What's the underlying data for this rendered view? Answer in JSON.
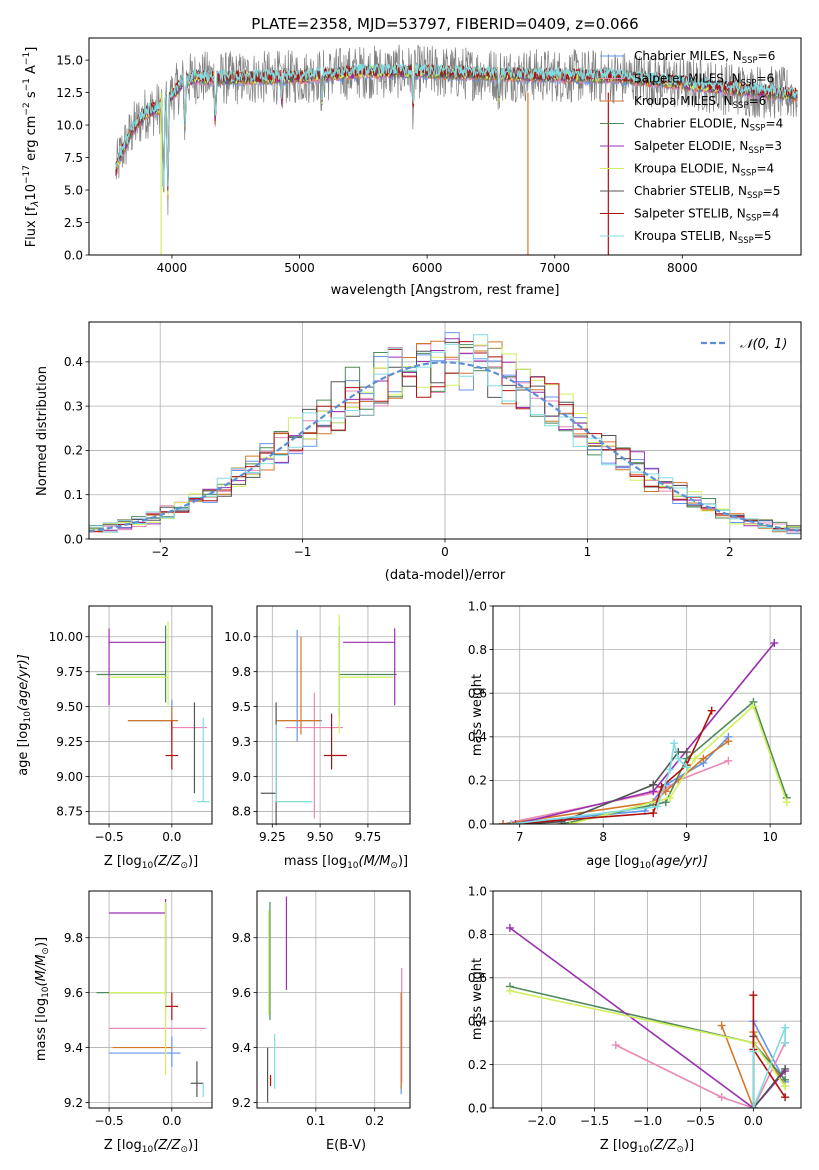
{
  "colors": {
    "chabrier_miles": "#6495ed",
    "salpeter_miles": "#e889b8",
    "kroupa_miles": "#d2772a",
    "chabrier_elodie": "#4e8a5a",
    "salpeter_elodie": "#9b2fb0",
    "kroupa_elodie": "#d0f060",
    "chabrier_stelib": "#555555",
    "salpeter_stelib": "#b01010",
    "kroupa_stelib": "#80dde0",
    "gauss": "#5b8fd8",
    "observed": "#7f7f7f"
  },
  "chart_data": [
    {
      "id": "spectrum",
      "type": "line",
      "title": "PLATE=2358, MJD=53797, FIBERID=0409, z=0.066",
      "xlabel": "wavelength [Angstrom, rest frame]",
      "ylabel_parts": [
        "Flux [f",
        "λ",
        "10",
        "−17",
        " erg cm",
        "−2",
        " s",
        "−1",
        " A",
        "−1",
        "]"
      ],
      "xlim": [
        3350,
        8930
      ],
      "ylim": [
        0,
        16.7
      ],
      "xticks": [
        4000,
        5000,
        6000,
        7000,
        8000
      ],
      "yticks": [
        0.0,
        2.5,
        5.0,
        7.5,
        10.0,
        12.5,
        15.0
      ],
      "continuum": {
        "x": [
          3560,
          3600,
          3700,
          3800,
          3900,
          4000,
          4100,
          4200,
          4300,
          4500,
          5000,
          5500,
          6000,
          6500,
          7000,
          7500,
          8000,
          8500,
          8900
        ],
        "y": [
          6.5,
          7.8,
          9.8,
          11.0,
          11.3,
          12.3,
          13.4,
          13.7,
          13.6,
          13.6,
          13.7,
          14.1,
          14.1,
          13.9,
          13.8,
          13.7,
          13.2,
          12.7,
          12.3
        ]
      },
      "legend": [
        {
          "label": "Chabrier MILES, N",
          "sub": "SSP",
          "tail": "=6"
        },
        {
          "label": "Salpeter MILES, N",
          "sub": "SSP",
          "tail": "=6"
        },
        {
          "label": "Kroupa MILES, N",
          "sub": "SSP",
          "tail": "=6"
        },
        {
          "label": "Chabrier ELODIE, N",
          "sub": "SSP",
          "tail": "=4"
        },
        {
          "label": "Salpeter ELODIE, N",
          "sub": "SSP",
          "tail": "=3"
        },
        {
          "label": "Kroupa ELODIE, N",
          "sub": "SSP",
          "tail": "=4"
        },
        {
          "label": "Chabrier STELIB, N",
          "sub": "SSP",
          "tail": "=5"
        },
        {
          "label": "Salpeter STELIB, N",
          "sub": "SSP",
          "tail": "=4"
        },
        {
          "label": "Kroupa STELIB, N",
          "sub": "SSP",
          "tail": "=5"
        }
      ]
    },
    {
      "id": "residuals",
      "type": "line",
      "xlabel": "(data-model)/error",
      "ylabel": "Normed distribution",
      "xlim": [
        -2.5,
        2.5
      ],
      "ylim": [
        0,
        0.49
      ],
      "xticks": [
        -2,
        -1,
        0,
        1,
        2
      ],
      "xticklabels": [
        "−2",
        "−1",
        "0",
        "1",
        "2"
      ],
      "yticks": [
        0.0,
        0.1,
        0.2,
        0.3,
        0.4
      ],
      "legend": "𝒩(0, 1)",
      "bin_width": 0.1
    },
    {
      "id": "age_vs_Z",
      "type": "scatter",
      "xlabel": "Z [log",
      "xlabel_parts": [
        "Z [log",
        "10",
        "(Z/Z",
        "⊙",
        ")]"
      ],
      "ylabel_parts": [
        "age  [log",
        "10",
        "(age/yr)]"
      ],
      "xlim": [
        -0.66,
        0.32
      ],
      "ylim": [
        8.66,
        10.22
      ],
      "xticks": [
        -0.5,
        0.0
      ],
      "xticklabels": [
        "−0.5",
        "0.0"
      ],
      "yticks": [
        8.75,
        9.0,
        9.25,
        9.5,
        9.75,
        10.0
      ],
      "yticklabels": [
        "8.75",
        "9.00",
        "9.25",
        "9.50",
        "9.75",
        "10.00"
      ],
      "points": [
        {
          "k": "chabrier_miles",
          "x": 0.0,
          "xerr": [
            0.35,
            0.0
          ],
          "y": 9.4,
          "yerr": [
            0.08,
            0.15
          ]
        },
        {
          "k": "salpeter_miles",
          "x": 0.0,
          "xerr": [
            0.0,
            0.28
          ],
          "y": 9.35,
          "yerr": [
            0.1,
            0.1
          ]
        },
        {
          "k": "kroupa_miles",
          "x": 0.0,
          "xerr": [
            0.35,
            0.05
          ],
          "y": 9.4,
          "yerr": [
            0.1,
            0.1
          ]
        },
        {
          "k": "chabrier_elodie",
          "x": -0.05,
          "xerr": [
            0.55,
            0.0
          ],
          "y": 9.73,
          "yerr": [
            0.2,
            0.35
          ]
        },
        {
          "k": "salpeter_elodie",
          "x": -0.5,
          "xerr": [
            0.0,
            0.45
          ],
          "y": 9.96,
          "yerr": [
            0.45,
            0.1
          ]
        },
        {
          "k": "kroupa_elodie",
          "x": -0.03,
          "xerr": [
            0.47,
            0.0
          ],
          "y": 9.71,
          "yerr": [
            0.2,
            0.4
          ]
        },
        {
          "k": "chabrier_stelib",
          "x": 0.18,
          "xerr": [
            0.0,
            0.0
          ],
          "y": 8.88,
          "yerr": [
            0.0,
            0.65
          ]
        },
        {
          "k": "salpeter_stelib",
          "x": 0.0,
          "xerr": [
            0.05,
            0.05
          ],
          "y": 9.15,
          "yerr": [
            0.1,
            0.25
          ]
        },
        {
          "k": "kroupa_stelib",
          "x": 0.25,
          "xerr": [
            0.05,
            0.05
          ],
          "y": 8.82,
          "yerr": [
            0.0,
            0.6
          ]
        }
      ]
    },
    {
      "id": "age_vs_mass",
      "type": "scatter",
      "xlabel_parts": [
        "mass [log",
        "10",
        "(M/M",
        "⊙",
        ")]"
      ],
      "xlim": [
        9.17,
        9.97
      ],
      "ylim": [
        8.66,
        10.22
      ],
      "xticks": [
        9.25,
        9.5,
        9.75
      ],
      "xticklabels": [
        "9.25",
        "9.50",
        "9.75"
      ],
      "yticks": [
        8.75,
        9.0,
        9.25,
        9.5,
        9.75,
        10.0
      ],
      "points": [
        {
          "k": "chabrier_miles",
          "x": 9.38,
          "xerr": [
            0.1,
            0.13
          ],
          "y": 9.4,
          "yerr": [
            0.15,
            0.65
          ]
        },
        {
          "k": "salpeter_miles",
          "x": 9.47,
          "xerr": [
            0.15,
            0.15
          ],
          "y": 9.35,
          "yerr": [
            0.65,
            0.25
          ]
        },
        {
          "k": "kroupa_miles",
          "x": 9.4,
          "xerr": [
            0.13,
            0.1
          ],
          "y": 9.4,
          "yerr": [
            0.1,
            0.6
          ]
        },
        {
          "k": "chabrier_elodie",
          "x": 9.6,
          "xerr": [
            0.0,
            0.3
          ],
          "y": 9.73,
          "yerr": [
            0.3,
            0.35
          ]
        },
        {
          "k": "salpeter_elodie",
          "x": 9.89,
          "xerr": [
            0.27,
            0.0
          ],
          "y": 9.96,
          "yerr": [
            0.45,
            0.1
          ]
        },
        {
          "k": "kroupa_elodie",
          "x": 9.6,
          "xerr": [
            0.0,
            0.28
          ],
          "y": 9.71,
          "yerr": [
            0.4,
            0.45
          ]
        },
        {
          "k": "chabrier_stelib",
          "x": 9.27,
          "xerr": [
            0.08,
            0.0
          ],
          "y": 8.88,
          "yerr": [
            0.23,
            0.65
          ]
        },
        {
          "k": "salpeter_stelib",
          "x": 9.56,
          "xerr": [
            0.04,
            0.08
          ],
          "y": 9.15,
          "yerr": [
            0.1,
            0.3
          ]
        },
        {
          "k": "kroupa_stelib",
          "x": 9.27,
          "xerr": [
            0.0,
            0.19
          ],
          "y": 8.82,
          "yerr": [
            0.0,
            0.55
          ]
        }
      ]
    },
    {
      "id": "weight_vs_age",
      "type": "line",
      "xlabel_parts": [
        "age  [log",
        "10",
        "(age/yr)]"
      ],
      "ylabel": "mass weight",
      "xlim": [
        6.68,
        10.37
      ],
      "ylim": [
        0,
        1.0
      ],
      "xticks": [
        7,
        8,
        9,
        10
      ],
      "yticks": [
        0.0,
        0.2,
        0.4,
        0.6,
        0.8,
        1.0
      ],
      "series": [
        {
          "k": "chabrier_miles",
          "x": [
            6.8,
            8.5,
            8.75,
            9.2,
            9.5
          ],
          "y": [
            0.0,
            0.06,
            0.18,
            0.28,
            0.4
          ]
        },
        {
          "k": "salpeter_miles",
          "x": [
            6.8,
            8.7,
            8.9,
            9.5
          ],
          "y": [
            0.0,
            0.15,
            0.2,
            0.29
          ]
        },
        {
          "k": "kroupa_miles",
          "x": [
            6.8,
            8.6,
            8.75,
            9.2,
            9.5
          ],
          "y": [
            0.0,
            0.1,
            0.15,
            0.3,
            0.38
          ]
        },
        {
          "k": "chabrier_elodie",
          "x": [
            7.5,
            8.75,
            9.0,
            9.8,
            10.2
          ],
          "y": [
            0.0,
            0.1,
            0.3,
            0.56,
            0.12
          ]
        },
        {
          "k": "salpeter_elodie",
          "x": [
            6.95,
            8.6,
            10.05
          ],
          "y": [
            0.0,
            0.15,
            0.83
          ]
        },
        {
          "k": "kroupa_elodie",
          "x": [
            7.6,
            8.8,
            9.1,
            9.8,
            10.2
          ],
          "y": [
            0.0,
            0.12,
            0.3,
            0.54,
            0.1
          ]
        },
        {
          "k": "chabrier_stelib",
          "x": [
            6.9,
            7.5,
            8.6,
            8.9,
            9.0
          ],
          "y": [
            0.0,
            0.01,
            0.18,
            0.33,
            0.33
          ]
        },
        {
          "k": "salpeter_stelib",
          "x": [
            6.9,
            8.6,
            8.7,
            9.0,
            9.3
          ],
          "y": [
            0.0,
            0.05,
            0.17,
            0.27,
            0.52
          ]
        },
        {
          "k": "kroupa_stelib",
          "x": [
            6.9,
            8.65,
            8.8,
            8.85,
            8.9,
            9.0
          ],
          "y": [
            0.0,
            0.08,
            0.25,
            0.37,
            0.3,
            0.26
          ]
        }
      ]
    },
    {
      "id": "mass_vs_Z",
      "type": "scatter",
      "xlabel_parts": [
        "Z [log",
        "10",
        "(Z/Z",
        "⊙",
        ")]"
      ],
      "ylabel_parts": [
        "mass [log",
        "10",
        "(M/M",
        "⊙",
        ")]"
      ],
      "xlim": [
        -0.66,
        0.32
      ],
      "ylim": [
        9.18,
        9.97
      ],
      "xticks": [
        -0.5,
        0.0
      ],
      "xticklabels": [
        "−0.5",
        "0.0"
      ],
      "yticks": [
        9.2,
        9.4,
        9.6,
        9.8
      ],
      "points": [
        {
          "k": "chabrier_miles",
          "x": 0.0,
          "xerr": [
            0.5,
            0.07
          ],
          "y": 9.38,
          "yerr": [
            0.05,
            0.06
          ]
        },
        {
          "k": "salpeter_miles",
          "x": 0.0,
          "xerr": [
            0.5,
            0.27
          ],
          "y": 9.47,
          "yerr": [
            0.0,
            0.0
          ]
        },
        {
          "k": "kroupa_miles",
          "x": 0.0,
          "xerr": [
            0.47,
            0.0
          ],
          "y": 9.4,
          "yerr": [
            0.0,
            0.0
          ]
        },
        {
          "k": "chabrier_elodie",
          "x": -0.05,
          "xerr": [
            0.55,
            0.0
          ],
          "y": 9.6,
          "yerr": [
            0.07,
            0.34
          ]
        },
        {
          "k": "salpeter_elodie",
          "x": -0.05,
          "xerr": [
            0.45,
            0.0
          ],
          "y": 9.89,
          "yerr": [
            0.3,
            0.05
          ]
        },
        {
          "k": "kroupa_elodie",
          "x": -0.05,
          "xerr": [
            0.45,
            0.0
          ],
          "y": 9.6,
          "yerr": [
            0.3,
            0.33
          ]
        },
        {
          "k": "chabrier_stelib",
          "x": 0.2,
          "xerr": [
            0.05,
            0.05
          ],
          "y": 9.27,
          "yerr": [
            0.05,
            0.08
          ]
        },
        {
          "k": "salpeter_stelib",
          "x": 0.0,
          "xerr": [
            0.05,
            0.05
          ],
          "y": 9.55,
          "yerr": [
            0.05,
            0.05
          ]
        },
        {
          "k": "kroupa_stelib",
          "x": 0.25,
          "xerr": [
            0.0,
            0.0
          ],
          "y": 9.27,
          "yerr": [
            0.05,
            0.0
          ]
        }
      ]
    },
    {
      "id": "mass_vs_ebv",
      "type": "scatter",
      "xlabel": "E(B-V)",
      "xlim": [
        0.0,
        0.26
      ],
      "ylim": [
        9.18,
        9.97
      ],
      "xticks": [
        0.1,
        0.2
      ],
      "xticklabels": [
        "0.1",
        "0.2"
      ],
      "yticks": [
        9.2,
        9.4,
        9.6,
        9.8
      ],
      "points": [
        {
          "k": "chabrier_miles",
          "x": 0.245,
          "y": 9.38,
          "yerr": [
            0.15,
            0.22
          ]
        },
        {
          "k": "salpeter_miles",
          "x": 0.246,
          "y": 9.47,
          "yerr": [
            0.2,
            0.22
          ]
        },
        {
          "k": "kroupa_miles",
          "x": 0.245,
          "y": 9.4,
          "yerr": [
            0.15,
            0.2
          ]
        },
        {
          "k": "chabrier_elodie",
          "x": 0.022,
          "y": 9.6,
          "yerr": [
            0.1,
            0.33
          ]
        },
        {
          "k": "salpeter_elodie",
          "x": 0.05,
          "y": 9.78,
          "yerr": [
            0.17,
            0.17
          ]
        },
        {
          "k": "kroupa_elodie",
          "x": 0.02,
          "y": 9.6,
          "yerr": [
            0.08,
            0.3
          ]
        },
        {
          "k": "chabrier_stelib",
          "x": 0.018,
          "y": 9.27,
          "yerr": [
            0.07,
            0.13
          ]
        },
        {
          "k": "salpeter_stelib",
          "x": 0.023,
          "y": 9.28,
          "yerr": [
            0.02,
            0.02
          ]
        },
        {
          "k": "kroupa_stelib",
          "x": 0.03,
          "y": 9.35,
          "yerr": [
            0.1,
            0.1
          ]
        }
      ]
    },
    {
      "id": "weight_vs_Z",
      "type": "line",
      "xlabel_parts": [
        "Z [log",
        "10",
        "(Z/Z",
        "⊙",
        ")]"
      ],
      "ylabel": "mass weight",
      "xlim": [
        -2.46,
        0.45
      ],
      "ylim": [
        0,
        1.0
      ],
      "xticks": [
        -2.0,
        -1.5,
        -1.0,
        -0.5,
        0.0
      ],
      "xticklabels": [
        "−2.0",
        "−1.5",
        "−1.0",
        "−0.5",
        "0.0"
      ],
      "yticks": [
        0.0,
        0.2,
        0.4,
        0.6,
        0.8,
        1.0
      ],
      "series": [
        {
          "k": "chabrier_miles",
          "x": [
            0.0,
            0.0,
            0.3
          ],
          "y": [
            0.0,
            0.4,
            0.12
          ]
        },
        {
          "k": "salpeter_miles",
          "x": [
            -1.3,
            -0.3,
            0.0,
            0.3
          ],
          "y": [
            0.29,
            0.05,
            0.0,
            0.3
          ]
        },
        {
          "k": "kroupa_miles",
          "x": [
            -0.3,
            0.0,
            0.0,
            0.3
          ],
          "y": [
            0.38,
            0.0,
            0.35,
            0.1
          ]
        },
        {
          "k": "chabrier_elodie",
          "x": [
            -2.3,
            0.0,
            0.3
          ],
          "y": [
            0.56,
            0.3,
            0.13
          ]
        },
        {
          "k": "salpeter_elodie",
          "x": [
            -2.3,
            0.0,
            0.3
          ],
          "y": [
            0.83,
            0.0,
            0.17
          ]
        },
        {
          "k": "kroupa_elodie",
          "x": [
            -2.3,
            0.0,
            0.3
          ],
          "y": [
            0.54,
            0.3,
            0.1
          ]
        },
        {
          "k": "chabrier_stelib",
          "x": [
            0.0,
            0.0,
            0.3
          ],
          "y": [
            0.33,
            0.0,
            0.18
          ]
        },
        {
          "k": "salpeter_stelib",
          "x": [
            0.0,
            0.0,
            0.3
          ],
          "y": [
            0.52,
            0.27,
            0.05
          ]
        },
        {
          "k": "kroupa_stelib",
          "x": [
            0.0,
            0.0,
            0.3,
            0.3
          ],
          "y": [
            0.26,
            0.0,
            0.37,
            0.3
          ]
        }
      ]
    }
  ]
}
